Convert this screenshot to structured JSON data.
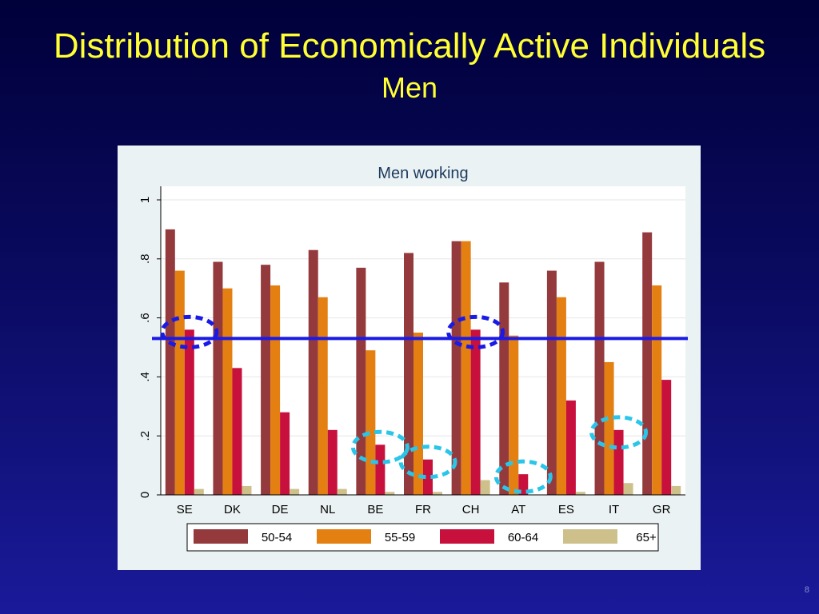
{
  "slide": {
    "title": "Distribution of Economically Active Individuals",
    "subtitle": "Men",
    "page_number": "8"
  },
  "chart_data": {
    "type": "bar",
    "title": "Men working",
    "xlabel": "",
    "ylabel": "",
    "categories": [
      "SE",
      "DK",
      "DE",
      "NL",
      "BE",
      "FR",
      "CH",
      "AT",
      "ES",
      "IT",
      "GR"
    ],
    "series": [
      {
        "name": "50-54",
        "color": "#943a3d",
        "values": [
          0.9,
          0.79,
          0.78,
          0.83,
          0.77,
          0.82,
          0.86,
          0.72,
          0.76,
          0.79,
          0.89
        ]
      },
      {
        "name": "55-59",
        "color": "#e47f12",
        "values": [
          0.76,
          0.7,
          0.71,
          0.67,
          0.49,
          0.55,
          0.86,
          0.54,
          0.67,
          0.45,
          0.71
        ]
      },
      {
        "name": "60-64",
        "color": "#c8103c",
        "values": [
          0.56,
          0.43,
          0.28,
          0.22,
          0.17,
          0.12,
          0.56,
          0.07,
          0.32,
          0.22,
          0.39
        ]
      },
      {
        "name": "65+",
        "color": "#cdc08a",
        "values": [
          0.02,
          0.03,
          0.02,
          0.02,
          0.01,
          0.01,
          0.05,
          0.0,
          0.01,
          0.04,
          0.03
        ]
      }
    ],
    "ylim": [
      0,
      1
    ],
    "yticks": [
      0,
      0.2,
      0.4,
      0.6,
      0.8,
      1
    ],
    "ytick_labels": [
      "0",
      ".2",
      ".4",
      ".6",
      ".8",
      "1"
    ],
    "grid": true,
    "legend_position": "bottom",
    "reference_line": {
      "y": 0.53,
      "color": "#1a1ae6"
    },
    "highlights": [
      {
        "category": "SE",
        "series": "60-64",
        "color": "#1a1ae6"
      },
      {
        "category": "CH",
        "series": "60-64",
        "color": "#1a1ae6"
      },
      {
        "category": "BE",
        "series": "60-64",
        "color": "#29c6ea"
      },
      {
        "category": "FR",
        "series": "60-64",
        "color": "#29c6ea"
      },
      {
        "category": "AT",
        "series": "60-64",
        "color": "#29c6ea"
      },
      {
        "category": "IT",
        "series": "60-64",
        "color": "#29c6ea"
      }
    ]
  }
}
